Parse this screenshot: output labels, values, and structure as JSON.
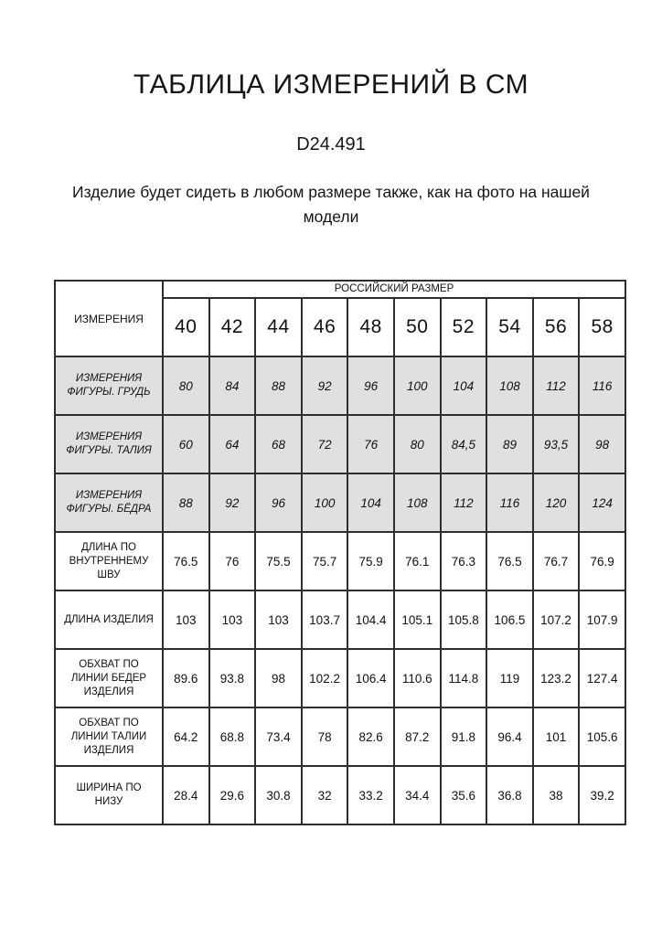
{
  "page": {
    "title": "ТАБЛИЦА ИЗМЕРЕНИЙ В СМ",
    "article_code": "D24.491",
    "note": "Изделие будет сидеть в любом размере также, как на фото на нашей модели"
  },
  "table": {
    "measurements_header": "ИЗМЕРЕНИЯ",
    "size_group_header": "РОССИЙСКИЙ РАЗМЕР",
    "sizes": [
      "40",
      "42",
      "44",
      "46",
      "48",
      "50",
      "52",
      "54",
      "56",
      "58"
    ],
    "rows": [
      {
        "label": "ИЗМЕРЕНИЯ ФИГУРЫ. ГРУДЬ",
        "style": "figure",
        "values": [
          "80",
          "84",
          "88",
          "92",
          "96",
          "100",
          "104",
          "108",
          "112",
          "116"
        ]
      },
      {
        "label": "ИЗМЕРЕНИЯ ФИГУРЫ. ТАЛИЯ",
        "style": "figure",
        "values": [
          "60",
          "64",
          "68",
          "72",
          "76",
          "80",
          "84,5",
          "89",
          "93,5",
          "98"
        ]
      },
      {
        "label": "ИЗМЕРЕНИЯ ФИГУРЫ. БЁДРА",
        "style": "figure",
        "values": [
          "88",
          "92",
          "96",
          "100",
          "104",
          "108",
          "112",
          "116",
          "120",
          "124"
        ]
      },
      {
        "label": "ДЛИНА ПО ВНУТРЕННЕМУ ШВУ",
        "style": "product",
        "values": [
          "76.5",
          "76",
          "75.5",
          "75.7",
          "75.9",
          "76.1",
          "76.3",
          "76.5",
          "76.7",
          "76.9"
        ]
      },
      {
        "label": "ДЛИНА ИЗДЕЛИЯ",
        "style": "product",
        "values": [
          "103",
          "103",
          "103",
          "103.7",
          "104.4",
          "105.1",
          "105.8",
          "106.5",
          "107.2",
          "107.9"
        ]
      },
      {
        "label": "ОБХВАТ ПО ЛИНИИ БЕДЕР ИЗДЕЛИЯ",
        "style": "product",
        "values": [
          "89.6",
          "93.8",
          "98",
          "102.2",
          "106.4",
          "110.6",
          "114.8",
          "119",
          "123.2",
          "127.4"
        ]
      },
      {
        "label": "ОБХВАТ ПО ЛИНИИ ТАЛИИ ИЗДЕЛИЯ",
        "style": "product",
        "values": [
          "64.2",
          "68.8",
          "73.4",
          "78",
          "82.6",
          "87.2",
          "91.8",
          "96.4",
          "101",
          "105.6"
        ]
      },
      {
        "label": "ШИРИНА ПО НИЗУ",
        "style": "product",
        "values": [
          "28.4",
          "29.6",
          "30.8",
          "32",
          "33.2",
          "34.4",
          "35.6",
          "36.8",
          "38",
          "39.2"
        ]
      }
    ],
    "colors": {
      "figure_row_bg": "#e0e0e0",
      "border": "#2e2e2e"
    }
  }
}
